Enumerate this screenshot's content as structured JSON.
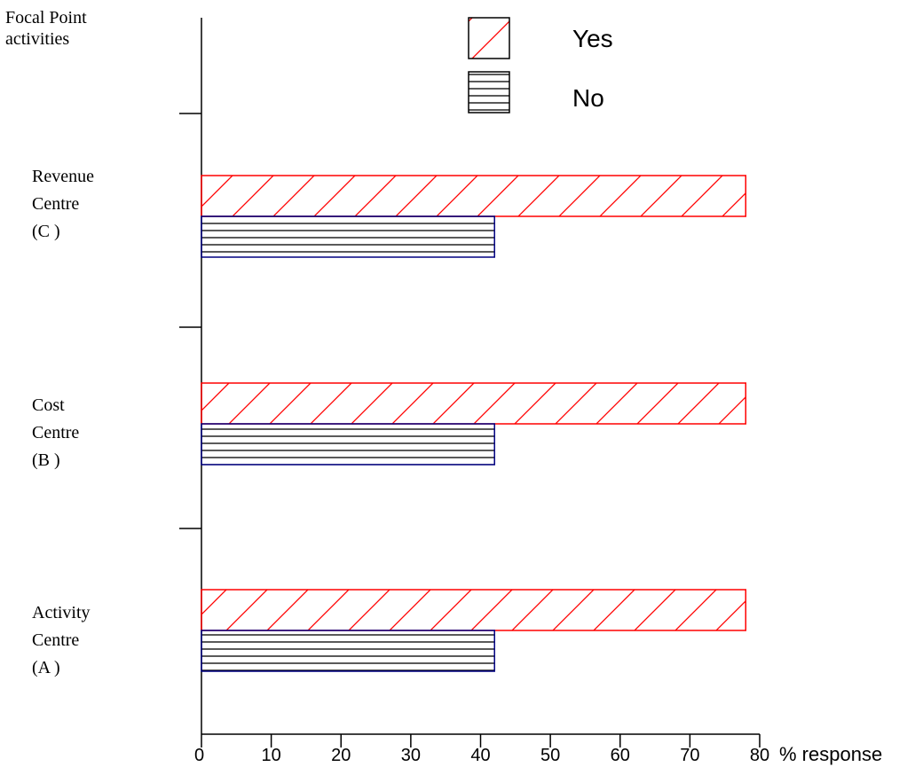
{
  "chart_data": {
    "type": "bar",
    "orientation": "horizontal",
    "title": "Focal Point activities",
    "xlabel": "% response",
    "categories": [
      "Activity Centre (A )",
      "Cost Centre (B )",
      "Revenue Centre (C )"
    ],
    "category_lines": [
      [
        "Activity",
        "Centre",
        "(A )"
      ],
      [
        "Cost",
        "Centre",
        "(B )"
      ],
      [
        "Revenue",
        "Centre",
        "(C )"
      ]
    ],
    "series": [
      {
        "name": "Yes",
        "values": [
          78,
          78,
          78
        ],
        "color": "#ff0000",
        "pattern": "diagonal-hatch"
      },
      {
        "name": "No",
        "values": [
          42,
          42,
          42
        ],
        "color": "#000080",
        "pattern": "horizontal-lines"
      }
    ],
    "xlim": [
      0,
      80
    ],
    "xticks": [
      0,
      10,
      20,
      30,
      40,
      50,
      60,
      70,
      80
    ],
    "legend_position": "top",
    "grid": false
  }
}
